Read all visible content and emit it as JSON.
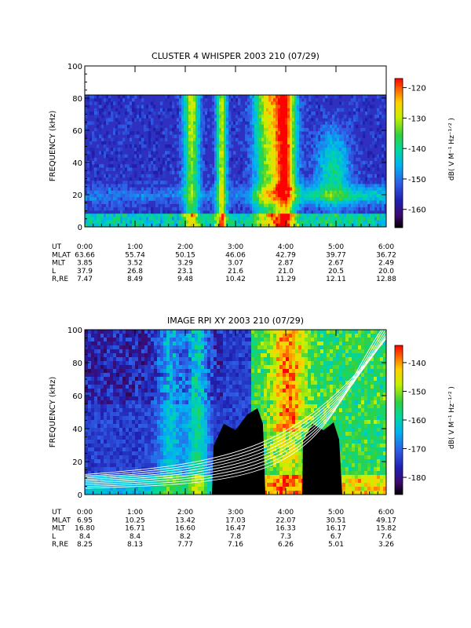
{
  "chart_data": [
    {
      "type": "heatmap",
      "title": "CLUSTER 4 WHISPER 2003 210 (07/29)",
      "ylabel": "FREQUENCY (kHz)",
      "ylim": [
        0,
        100
      ],
      "y_ticks": [
        "0",
        "20",
        "40",
        "60",
        "80",
        "100"
      ],
      "x_ticks": [
        "0:00",
        "1:00",
        "2:00",
        "3:00",
        "4:00",
        "5:00",
        "6:00"
      ],
      "data_ceiling_khz": 80,
      "colorbar": {
        "label": "dB( V M⁻¹ Hz⁻¹ᐟ² )",
        "range": [
          -166,
          -117
        ],
        "ticks": [
          "-120",
          "-130",
          "-140",
          "-150",
          "-160"
        ]
      },
      "ephemeris": {
        "labels": [
          "UT",
          "MLAT",
          "MLT",
          "L",
          "R,RE"
        ],
        "rows": [
          [
            "0:00",
            "1:00",
            "2:00",
            "3:00",
            "4:00",
            "5:00",
            "6:00"
          ],
          [
            "63.66",
            "55.74",
            "50.15",
            "46.06",
            "42.79",
            "39.77",
            "36.72"
          ],
          [
            "3.85",
            "3.52",
            "3.29",
            "3.07",
            "2.87",
            "2.67",
            "2.49"
          ],
          [
            "37.9",
            "26.8",
            "23.1",
            "21.6",
            "21.0",
            "20.5",
            "20.0"
          ],
          [
            "7.47",
            "8.49",
            "9.48",
            "10.42",
            "11.29",
            "12.11",
            "12.88"
          ]
        ]
      }
    },
    {
      "type": "heatmap",
      "title": "IMAGE RPI XY 2003 210 (07/29)",
      "ylabel": "FREQUENCY (kHz)",
      "ylim": [
        0,
        100
      ],
      "y_ticks": [
        "0",
        "20",
        "40",
        "60",
        "80",
        "100"
      ],
      "x_ticks": [
        "0:00",
        "1:00",
        "2:00",
        "3:00",
        "4:00",
        "5:00",
        "6:00"
      ],
      "colorbar": {
        "label": "dB( V M⁻¹ Hz⁻¹ᐟ² )",
        "range": [
          -186,
          -134
        ],
        "ticks": [
          "-140",
          "-150",
          "-160",
          "-170",
          "-180"
        ]
      },
      "ephemeris": {
        "labels": [
          "UT",
          "MLAT",
          "MLT",
          "L",
          "R,RE"
        ],
        "rows": [
          [
            "0:00",
            "1:00",
            "2:00",
            "3:00",
            "4:00",
            "5:00",
            "6:00"
          ],
          [
            "6.95",
            "10.25",
            "13.42",
            "17.03",
            "22.07",
            "30.51",
            "49.17"
          ],
          [
            "16.80",
            "16.71",
            "16.60",
            "16.47",
            "16.33",
            "16.17",
            "15.82"
          ],
          [
            "8.4",
            "8.4",
            "8.2",
            "7.8",
            "7.3",
            "6.7",
            "7.6"
          ],
          [
            "8.25",
            "8.13",
            "7.77",
            "7.16",
            "6.26",
            "5.01",
            "3.26"
          ]
        ]
      }
    }
  ],
  "colors": {
    "plot_background": "#3030c0",
    "no_data": "#000000",
    "overlay_lines": "#ffffff"
  }
}
